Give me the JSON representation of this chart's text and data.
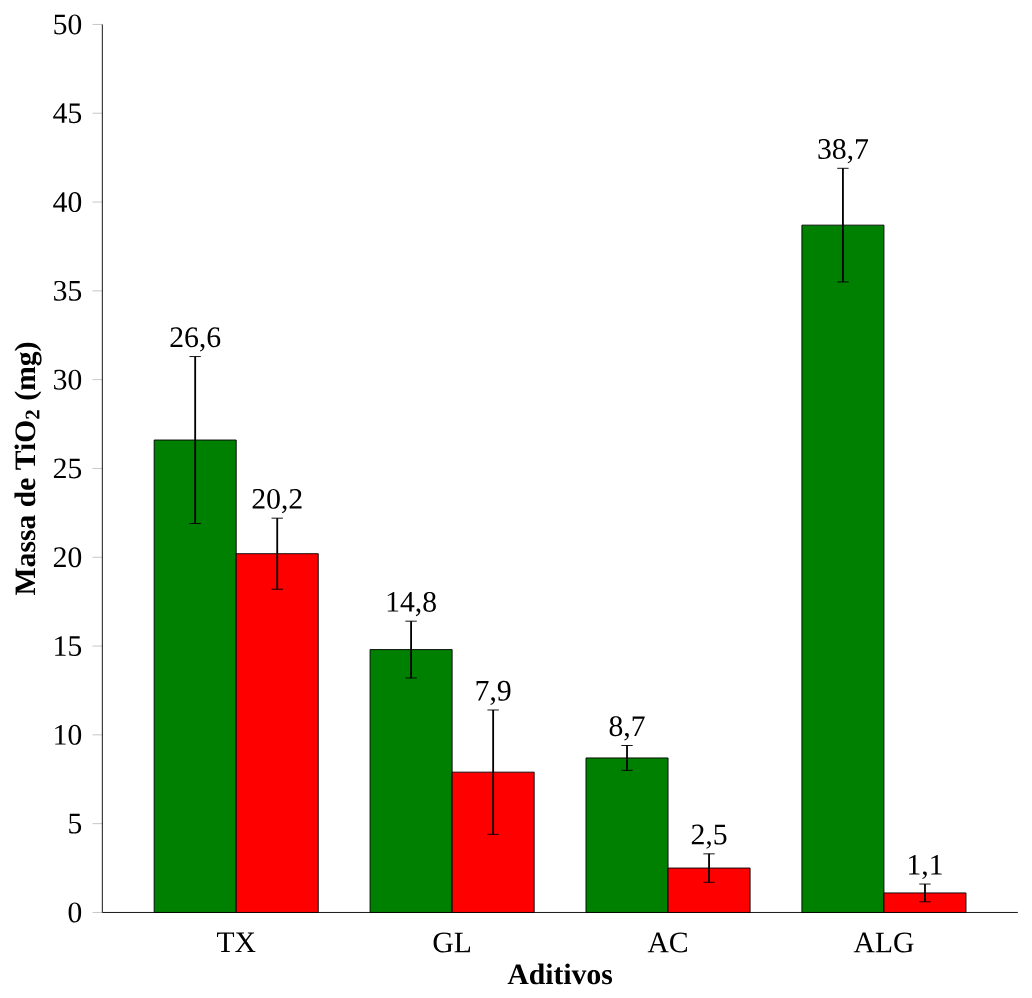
{
  "chart_data": {
    "type": "bar",
    "xlabel": "Aditivos",
    "ylabel": "Massa de TiO$_{2}$  (mg)",
    "categories": [
      "TX",
      "GL",
      "AC",
      "ALG"
    ],
    "ylim": [
      0,
      50
    ],
    "yticks": [
      0,
      5,
      10,
      15,
      20,
      25,
      30,
      35,
      40,
      45,
      50
    ],
    "grid": false,
    "series": [
      {
        "color": "#008000",
        "values": [
          26.6,
          14.8,
          8.7,
          38.7
        ],
        "errors": [
          4.7,
          1.6,
          0.7,
          3.2
        ],
        "value_labels": [
          "26,6",
          "14,8",
          "8,7",
          "38,7"
        ]
      },
      {
        "color": "#ff0000",
        "values": [
          20.2,
          7.9,
          2.5,
          1.1
        ],
        "errors": [
          2.0,
          3.5,
          0.8,
          0.5
        ],
        "value_labels": [
          "20,2",
          "7,9",
          "2,5",
          "1,1"
        ]
      }
    ]
  }
}
